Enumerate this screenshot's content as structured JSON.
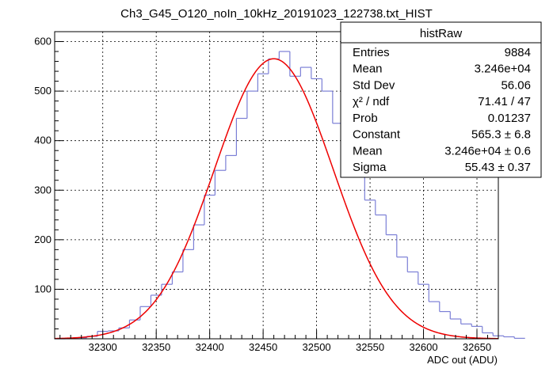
{
  "chart_data": {
    "type": "bar",
    "title": "Ch3_G45_O120_noIn_10kHz_20191023_122738.txt_HIST",
    "xlabel": "ADC out (ADU)",
    "ylabel": "",
    "xlim": [
      32255,
      32670
    ],
    "ylim": [
      0,
      620
    ],
    "x_ticks": [
      32300,
      32350,
      32400,
      32450,
      32500,
      32550,
      32600,
      32650
    ],
    "y_ticks": [
      100,
      200,
      300,
      400,
      500,
      600
    ],
    "x_tick_labels": [
      "32300",
      "32350",
      "32400",
      "32450",
      "32500",
      "32550",
      "32600",
      "32650"
    ],
    "y_tick_labels": [
      "100",
      "200",
      "300",
      "400",
      "500",
      "600"
    ],
    "grid": true,
    "bin_width": 10,
    "histogram": {
      "bin_edges_start": 32255,
      "counts": [
        0,
        1,
        2,
        5,
        15,
        16,
        22,
        38,
        65,
        88,
        110,
        135,
        180,
        230,
        290,
        340,
        370,
        445,
        500,
        535,
        565,
        580,
        530,
        548,
        525,
        500,
        435,
        405,
        355,
        280,
        250,
        210,
        165,
        135,
        110,
        75,
        55,
        40,
        30,
        25,
        12,
        6,
        4,
        1
      ],
      "color": "#7b7fd6"
    },
    "fit": {
      "name": "gaus",
      "constant": 565.3,
      "mean": 32460,
      "sigma": 55.43,
      "color": "#ee0000"
    },
    "stats_box": {
      "title": "histRaw",
      "rows": [
        {
          "label": "Entries",
          "value": "9884"
        },
        {
          "label": "Mean",
          "value": "3.246e+04"
        },
        {
          "label": "Std Dev",
          "value": "56.06"
        },
        {
          "label": "χ² / ndf",
          "value": "71.41 / 47"
        },
        {
          "label": "Prob",
          "value": "0.01237"
        },
        {
          "label": "Constant",
          "value": "565.3 ± 6.8"
        },
        {
          "label": "Mean",
          "value": "3.246e+04 ± 0.6"
        },
        {
          "label": "Sigma",
          "value": "55.43 ± 0.37"
        }
      ]
    }
  }
}
